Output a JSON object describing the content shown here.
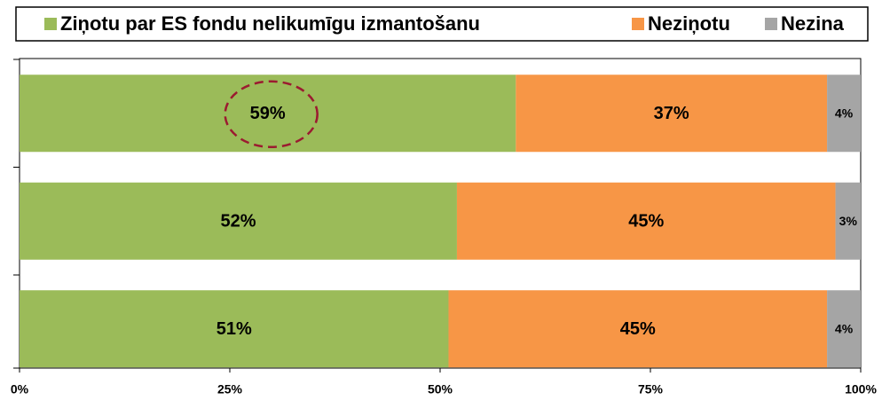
{
  "chart_data": {
    "type": "stacked_barh",
    "categories": [
      null,
      null,
      null
    ],
    "series": [
      {
        "name": "Ziņotu par ES fondu nelikumīgu izmantošanu",
        "color": "#9bbb59",
        "values": [
          59,
          52,
          51
        ],
        "value_labels": [
          "59%",
          "52%",
          "51%"
        ]
      },
      {
        "name": "Neziņotu",
        "color": "#f79646",
        "values": [
          37,
          45,
          45
        ],
        "value_labels": [
          "37%",
          "45%",
          "45%"
        ]
      },
      {
        "name": "Nezina",
        "color": "#a5a5a5",
        "values": [
          4,
          3,
          4
        ],
        "value_labels": [
          "4%",
          "3%",
          "4%"
        ]
      }
    ],
    "xlim": [
      0,
      100
    ],
    "xticks": [
      {
        "value": 0,
        "label": "0%"
      },
      {
        "value": 25,
        "label": "25%"
      },
      {
        "value": 50,
        "label": "50%"
      },
      {
        "value": 75,
        "label": "75%"
      },
      {
        "value": 100,
        "label": "100%"
      }
    ],
    "grid": false,
    "legend": "top"
  }
}
